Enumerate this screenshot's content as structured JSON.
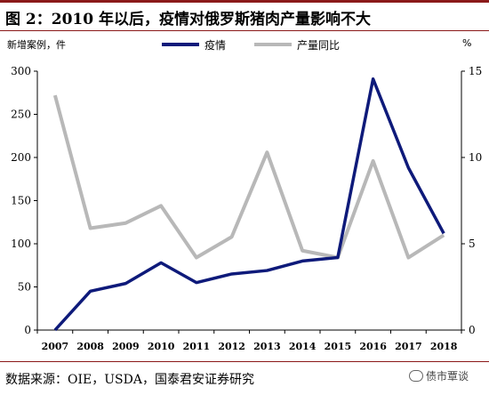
{
  "header": {
    "title": "图 2：2010 年以后，疫情对俄罗斯猪肉产量影响不大"
  },
  "axes": {
    "left_unit": "新增案例，件",
    "right_unit": "%"
  },
  "footer": {
    "source": "数据来源：OIE，USDA，国泰君安证券研究",
    "watermark": "债市覃谈",
    "watermark_icon": "wechat-bubble-icon"
  },
  "colors": {
    "outbreak": "#0e1a7a",
    "production": "#b8b8b8",
    "rule": "#8b1a1a"
  },
  "chart_data": {
    "type": "line",
    "categories": [
      "2007",
      "2008",
      "2009",
      "2010",
      "2011",
      "2012",
      "2013",
      "2014",
      "2015",
      "2016",
      "2017",
      "2018"
    ],
    "series": [
      {
        "name": "疫情",
        "axis": "left",
        "values": [
          0,
          45,
          54,
          78,
          55,
          65,
          69,
          80,
          84,
          291,
          188,
          112
        ]
      },
      {
        "name": "产量同比",
        "axis": "right",
        "values": [
          13.6,
          5.9,
          6.2,
          7.2,
          4.2,
          5.4,
          10.3,
          4.6,
          4.2,
          9.8,
          4.2,
          5.5
        ]
      }
    ],
    "y_left": {
      "min": 0,
      "max": 300,
      "ticks": [
        0,
        50,
        100,
        150,
        200,
        250,
        300
      ]
    },
    "y_right": {
      "min": 0,
      "max": 15,
      "ticks": [
        0,
        5,
        10,
        15
      ]
    },
    "grid": false,
    "legend_position": "top"
  }
}
